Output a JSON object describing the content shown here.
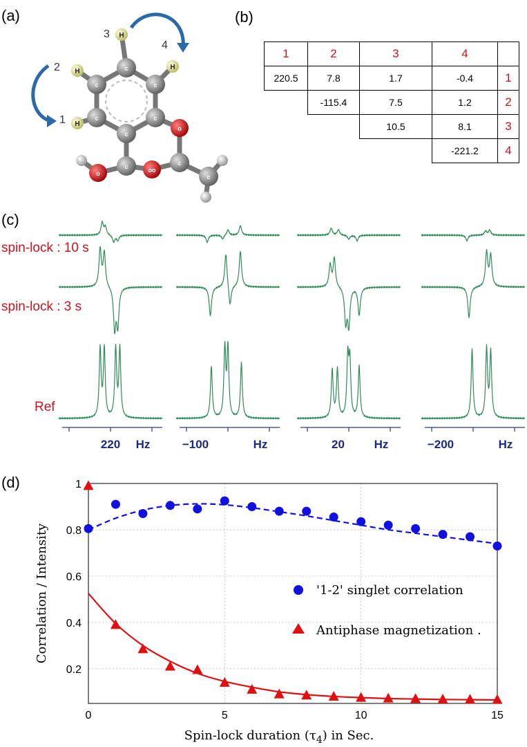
{
  "panels": {
    "a": "(a)",
    "b": "(b)",
    "c": "(c)",
    "d": "(d)"
  },
  "molecule": {
    "atom_label_c": "c",
    "atom_label_o": "o",
    "atom_label_h": "H",
    "atom_label_oo": "oo",
    "proton_labels": [
      "1",
      "2",
      "3",
      "4"
    ],
    "colors": {
      "carbon": "#8a8a8a",
      "oxygen": "#d0181c",
      "hydrogen": "#ecec9a",
      "hydrogen_white": "#e8e8e8",
      "arrow": "#2a6aa8"
    }
  },
  "coupling_table": {
    "header": [
      "1",
      "2",
      "3",
      "4",
      ""
    ],
    "rows": [
      [
        "220.5",
        "7.8",
        "1.7",
        "-0.4",
        "1"
      ],
      [
        "",
        "-115.4",
        "7.5",
        "1.2",
        "2"
      ],
      [
        "",
        "",
        "10.5",
        "8.1",
        "3"
      ],
      [
        "",
        "",
        "",
        "-221.2",
        "4"
      ]
    ]
  },
  "spectra": {
    "row_labels": [
      "spin-lock : 10 s",
      "spin-lock : 3 s",
      "Ref"
    ],
    "axes": [
      {
        "tick": "220",
        "unit": "Hz"
      },
      {
        "tick": "−100",
        "unit": "Hz"
      },
      {
        "tick": "20",
        "unit": "Hz"
      },
      {
        "tick": "−200",
        "unit": "Hz"
      }
    ],
    "colors": {
      "trace": "#2e8b57",
      "axis": "#2a3a8a",
      "tick_text": "#1a2a80"
    }
  },
  "chart_data": {
    "type": "scatter",
    "title": "",
    "xlabel": "Spin-lock duration (τ",
    "xlabel_sub": "4",
    "xlabel_tail": ") in Sec.",
    "ylabel": "Correlation / Intensity",
    "xlim": [
      0,
      15
    ],
    "ylim": [
      0.05,
      1.0
    ],
    "x_ticks": [
      0,
      5,
      10,
      15
    ],
    "y_ticks": [
      0.2,
      0.4,
      0.6,
      0.8,
      1
    ],
    "y_tick_labels": [
      "0.2",
      "0.4",
      "0.6",
      "0.8",
      "1"
    ],
    "x_tick_labels": [
      "0",
      "5",
      "10",
      "15"
    ],
    "grid": true,
    "legend_position": "center-right",
    "series": [
      {
        "name": "'1-2' singlet correlation",
        "marker": "circle",
        "color": "#1010e0",
        "x": [
          0,
          1,
          2,
          3,
          4,
          5,
          6,
          7,
          8,
          9,
          10,
          11,
          12,
          13,
          14,
          15
        ],
        "y": [
          0.805,
          0.91,
          0.87,
          0.905,
          0.89,
          0.925,
          0.9,
          0.88,
          0.88,
          0.855,
          0.835,
          0.82,
          0.805,
          0.78,
          0.77,
          0.73
        ],
        "fit": {
          "style": "dashed",
          "x": [
            0,
            1,
            2,
            3,
            4,
            5,
            6,
            7,
            8,
            9,
            10,
            11,
            12,
            13,
            14,
            15
          ],
          "y": [
            0.8,
            0.85,
            0.885,
            0.905,
            0.912,
            0.908,
            0.895,
            0.878,
            0.86,
            0.84,
            0.82,
            0.8,
            0.785,
            0.77,
            0.755,
            0.74
          ]
        }
      },
      {
        "name": "Antiphase magnetization .",
        "marker": "triangle",
        "color": "#e01010",
        "x": [
          0,
          1,
          2,
          3,
          4,
          5,
          6,
          7,
          8,
          9,
          10,
          11,
          12,
          13,
          14,
          15
        ],
        "y": [
          0.99,
          0.39,
          0.285,
          0.21,
          0.195,
          0.14,
          0.11,
          0.09,
          0.085,
          0.08,
          0.075,
          0.072,
          0.07,
          0.068,
          0.067,
          0.066
        ],
        "fit": {
          "style": "solid",
          "x": [
            0,
            1,
            2,
            3,
            4,
            5,
            6,
            7,
            8,
            9,
            10,
            11,
            12,
            13,
            14,
            15
          ],
          "y": [
            0.525,
            0.395,
            0.3,
            0.232,
            0.18,
            0.145,
            0.12,
            0.1,
            0.088,
            0.08,
            0.075,
            0.071,
            0.069,
            0.067,
            0.066,
            0.065
          ]
        }
      }
    ]
  }
}
